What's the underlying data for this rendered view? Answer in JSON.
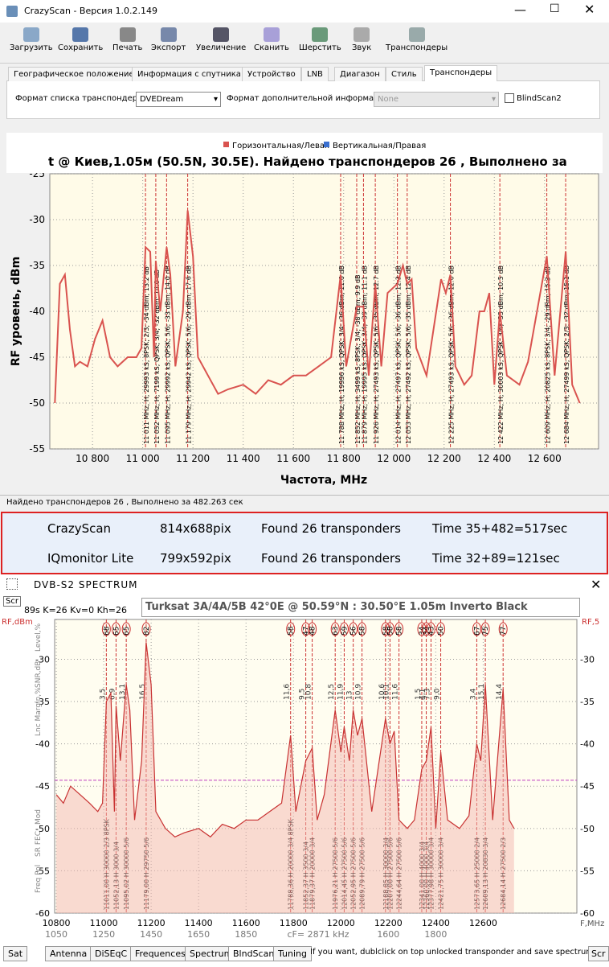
{
  "window": {
    "title": "CrazyScan - Версия 1.0.2.149"
  },
  "toolbar": [
    "Загрузить",
    "Сохранить",
    "Печать",
    "Экспорт",
    "Увеличение",
    "Сканить",
    "Шерстить",
    "Звук",
    "Транспондеры"
  ],
  "tabs": [
    "Географическое положение",
    "Информация с спутника",
    "Устройство",
    "LNB",
    "Диагазон",
    "Стиль",
    "Транспондеры"
  ],
  "form": {
    "list_format_label": "Формат списка транспондеров",
    "list_format_value": "DVEDream",
    "extra_info_label": "Формат дополнительной информации",
    "extra_info_value": "None",
    "checkbox": "BlindScan2"
  },
  "status": "Найдено транспондеров 26 , Выполнено за 482.263 сек",
  "comparison": {
    "rows": [
      [
        "CrazyScan",
        "814x688pix",
        "Found 26 transponders",
        "Time  35+482=517sec"
      ],
      [
        "IQmonitor Lite",
        "799x592pix",
        "Found 26 transponders",
        "Time  32+89=121sec"
      ]
    ]
  },
  "spectrum_window": {
    "title": "DVB-S2   SPECTRUM",
    "scr": "Scr",
    "stats": "89s  K=26  Kv=0  Kh=26",
    "satellite": "Turksat 3A/4A/5B   42°0E  @  50.59°N : 30.50°E    1.05m  Inverto Black",
    "bottom_tabs": [
      "Sat",
      "Antenna",
      "DiSEqC",
      "Frequences",
      "Spectrum",
      "BlndScan",
      "Tuning"
    ],
    "hint": "If you want, dublclick on top unlocked transponder and save spectrum",
    "scr_right": "Scr"
  },
  "chart_data": [
    {
      "type": "line",
      "title": "t @ Киев,1.05м   (50.5N, 30.5E). Найдено транспондеров 26 , Выполнено за",
      "x_label": "Частота, MHz",
      "y_label": "RF уровень, dBm",
      "grid": true,
      "xlim": [
        10630,
        12815
      ],
      "ylim": [
        -55,
        -25
      ],
      "xticks": [
        {
          "value": 10800,
          "label": "10 800"
        },
        {
          "value": 11000,
          "label": "11 000"
        },
        {
          "value": 11200,
          "label": "11 200"
        },
        {
          "value": 11400,
          "label": "11 400"
        },
        {
          "value": 11600,
          "label": "11 600"
        },
        {
          "value": 11800,
          "label": "11 800"
        },
        {
          "value": 12000,
          "label": "12 000"
        },
        {
          "value": 12200,
          "label": "12 200"
        },
        {
          "value": 12400,
          "label": "12 400"
        },
        {
          "value": 12600,
          "label": "12 600"
        }
      ],
      "yticks": [
        -25,
        -30,
        -35,
        -40,
        -45,
        -50,
        -55
      ],
      "series": [
        {
          "name": "Горизонтальная/Левая",
          "color": "#d9534f",
          "x": [
            10650,
            10670,
            10690,
            10710,
            10730,
            10750,
            10780,
            10810,
            10840,
            10870,
            10900,
            10940,
            10975,
            10995,
            11011,
            11030,
            11045,
            11052,
            11070,
            11095,
            11110,
            11130,
            11160,
            11179,
            11200,
            11220,
            11260,
            11300,
            11340,
            11400,
            11450,
            11500,
            11550,
            11600,
            11650,
            11700,
            11750,
            11788,
            11810,
            11852,
            11879,
            11900,
            11926,
            11950,
            11975,
            12014,
            12036,
            12053,
            12071,
            12089,
            12130,
            12188,
            12207,
            12225,
            12245,
            12280,
            12310,
            12341,
            12360,
            12380,
            12400,
            12422,
            12450,
            12500,
            12534,
            12570,
            12609,
            12640,
            12684,
            12710,
            12740
          ],
          "values": [
            -50,
            -37,
            -36,
            -42,
            -46,
            -45.5,
            -46,
            -43,
            -41,
            -45,
            -46,
            -45,
            -45,
            -44,
            -33,
            -33.5,
            -45,
            -34.5,
            -40,
            -33,
            -36,
            -46,
            -40,
            -29,
            -34,
            -45,
            -47,
            -49,
            -48.5,
            -48,
            -49,
            -47.5,
            -48,
            -47,
            -47,
            -46,
            -45,
            -36,
            -46,
            -39.5,
            -39.5,
            -47,
            -37,
            -46,
            -38,
            -37,
            -35,
            -37,
            -36.5,
            -44,
            -47,
            -36.5,
            -38,
            -36,
            -46,
            -48,
            -47,
            -40,
            -40,
            -38,
            -48,
            -40,
            -47,
            -48,
            -45.5,
            -40,
            -34,
            -47,
            -33.5,
            -48,
            -50
          ]
        },
        {
          "name": "Вертикальная/Правая",
          "color": "#3a6fd0",
          "x": [],
          "values": []
        }
      ],
      "markers": [
        {
          "x": 11011,
          "label": "11 011 MHz; H; 29993 kS; 8PSK; 2/3; -34 dBm; 13.2 dB"
        },
        {
          "x": 11052,
          "label": "11 052 MHz; H; 7199 kS; QPSK; 3/4; -32 dBm; 14.0 dB"
        },
        {
          "x": 11095,
          "label": "11 095 MHz; H; 29992 kS; QPSK; 5/6; -33 dBm; 14.0 dB"
        },
        {
          "x": 11179,
          "label": "11 179 MHz; H; 29942 kS; QPSK; 5/6; -29 dBm; 17.6 dB"
        },
        {
          "x": 11788,
          "label": "11 788 MHz; H; 19996 kS; QPSK; 3/4; -36 dBm; 11.6 dB"
        },
        {
          "x": 11852,
          "label": "11 852 MHz; H; 3499 kS; 8PSK; 3/4; -38 dBm; 9.9 dB"
        },
        {
          "x": 11879,
          "label": "11 879 MHz; H; 19995 kS; QPSK; 3/4; -39 dBm; 11.1 dB"
        },
        {
          "x": 11926,
          "label": "11 926 MHz; H; 27493 kS; QPSK; 5/6; -35 dBm; 12.7 dB"
        },
        {
          "x": 12014,
          "label": "12 014 MHz; H; 27497 kS; QPSK; 5/6; -36 dBm; 12.3 dB"
        },
        {
          "x": 12053,
          "label": "12 053 MHz; H; 27492 kS; QPSK; 5/6; -35 dBm; 12.4 dB"
        },
        {
          "x": 12225,
          "label": "12 225 MHz; H; 27493 kS; QPSK; 5/6; -36 dBm; 12.0 dB"
        },
        {
          "x": 12422,
          "label": "12 422 MHz; H; 30003 kS; QPSK; 3/4; -33 dBm; 10.5 dB"
        },
        {
          "x": 12609,
          "label": "12 609 MHz; H; 20825 kS; 8PSK; 3/4; -29 dBm; 15.3 dB"
        },
        {
          "x": 12684,
          "label": "12 684 MHz; H; 27499 kS; QPSK; 2/3; -32 dBm; 15.1 dB"
        }
      ]
    },
    {
      "type": "line",
      "x_label": "F,MHz",
      "y_label": "RF,dBm",
      "y2_label": "RF,5",
      "grid": true,
      "xlim": [
        10793,
        12995
      ],
      "ylim": [
        -60,
        -25.3
      ],
      "xticks": [
        10800,
        11000,
        11200,
        11400,
        11600,
        11800,
        12000,
        12200,
        12400,
        12600
      ],
      "x2ticks": [
        {
          "value": 10800,
          "label": "1050"
        },
        {
          "value": 11000,
          "label": "1250"
        },
        {
          "value": 11200,
          "label": "1450"
        },
        {
          "value": 11400,
          "label": "1650"
        },
        {
          "value": 11600,
          "label": "1850"
        },
        {
          "value": 12200,
          "label": "1600"
        },
        {
          "value": 12400,
          "label": "1800"
        }
      ],
      "x2_note": "cF= 2871 kHz",
      "yticks": [
        -30,
        -35,
        -40,
        -45,
        -50,
        -55,
        -60
      ],
      "hline": -44.3,
      "hline_color": "#c040c0",
      "side_labels": [
        "Level,%",
        "SNR,dB",
        "Lnc Margin,%",
        "Mod",
        "SR  FEC",
        "Freq  Pol"
      ],
      "series": [
        {
          "name": "Spectrum",
          "color": "#c83232",
          "x": [
            10800,
            10830,
            10860,
            10900,
            10940,
            10975,
            10995,
            11011,
            11030,
            11045,
            11052,
            11070,
            11095,
            11110,
            11130,
            11160,
            11179,
            11200,
            11220,
            11260,
            11300,
            11340,
            11400,
            11450,
            11500,
            11550,
            11600,
            11650,
            11700,
            11750,
            11788,
            11810,
            11852,
            11879,
            11900,
            11930,
            11976,
            12000,
            12014,
            12036,
            12052,
            12070,
            12089,
            12130,
            12188,
            12207,
            12225,
            12245,
            12280,
            12310,
            12341,
            12360,
            12380,
            12400,
            12421,
            12450,
            12500,
            12540,
            12573,
            12590,
            12609,
            12640,
            12684,
            12710,
            12730
          ],
          "values": [
            -46,
            -47,
            -45,
            -46,
            -47,
            -48,
            -47,
            -35,
            -34,
            -48,
            -35.5,
            -42,
            -33,
            -36,
            -49,
            -42,
            -28,
            -33,
            -48,
            -50,
            -51,
            -50.5,
            -50,
            -51,
            -49.5,
            -50,
            -49,
            -49,
            -48,
            -47,
            -39,
            -48,
            -42,
            -40.5,
            -49,
            -46,
            -36,
            -41,
            -38,
            -42,
            -36,
            -39,
            -37,
            -48,
            -37,
            -40,
            -38.5,
            -49,
            -50,
            -49,
            -43,
            -42,
            -38,
            -50,
            -41,
            -49,
            -50,
            -48.5,
            -40,
            -42,
            -33,
            -49,
            -33.5,
            -49,
            -50
          ]
        }
      ],
      "markers": [
        {
          "x": 11011,
          "level": "68",
          "snr": "3,5",
          "label": "11011,00 H   30000 2/3 8PSK"
        },
        {
          "x": 11052,
          "level": "65",
          "snr": "6,9",
          "label": "11052,13 H   3000 3/4"
        },
        {
          "x": 11095,
          "level": "65",
          "snr": "13,1",
          "label": "11095,02 H   30000 5/6"
        },
        {
          "x": 11179,
          "level": "82",
          "snr": "16,5",
          "label": "11179,00 H   29750 5/6"
        },
        {
          "x": 11788,
          "level": "58",
          "snr": "11,6",
          "label": "11788,36 H   20000 3/4 8PSK"
        },
        {
          "x": 11852,
          "level": "47",
          "snr": "9,5",
          "label": "11852,37 H   3500 3/4"
        },
        {
          "x": 11879,
          "level": "48",
          "snr": "10,8",
          "label": "11879,37 H   20000 3/4"
        },
        {
          "x": 11976,
          "level": "63",
          "snr": "12,5",
          "label": "11976,21 H   27500 5/6"
        },
        {
          "x": 12014,
          "level": "59",
          "snr": "11,9",
          "label": "12014,45 H   27500 5/6"
        },
        {
          "x": 12052,
          "level": "56",
          "snr": "13",
          "label": "12052,95 H   27500 5/6"
        },
        {
          "x": 12089,
          "level": "58",
          "snr": "10,9",
          "label": "12089,79 H   27500 5/6"
        },
        {
          "x": 12188,
          "level": "58",
          "snr": "10,6",
          "label": "12188,85 H   30000 3/4"
        },
        {
          "x": 12207,
          "level": "58",
          "snr": "10,1",
          "label": "12207,00 H   27500 5/6"
        },
        {
          "x": 12245,
          "level": "58",
          "snr": "11,6",
          "label": "12244,64 H   27500 5/6"
        },
        {
          "x": 12341,
          "level": "34",
          "snr": "1,5",
          "label": "12341,00 H   4000 3/4"
        },
        {
          "x": 12360,
          "level": "34",
          "snr": "4,1",
          "label": "12360,00 H   4000 3/4"
        },
        {
          "x": 12380,
          "level": "43",
          "snr": "7,3",
          "label": "12377,98 H   30000 3/4"
        },
        {
          "x": 12421,
          "level": "50",
          "snr": "9,0",
          "label": "12421,75 H   30000 3/4"
        },
        {
          "x": 12573,
          "level": "67",
          "snr": "3,4",
          "label": "12573,65 H   25000 2/4"
        },
        {
          "x": 12609,
          "level": "75",
          "snr": "15,1",
          "label": "12609,13 H   20830 3/4"
        },
        {
          "x": 12684,
          "level": "77",
          "snr": "14,4",
          "label": "12684,14 H   27500 2/3"
        }
      ]
    }
  ]
}
